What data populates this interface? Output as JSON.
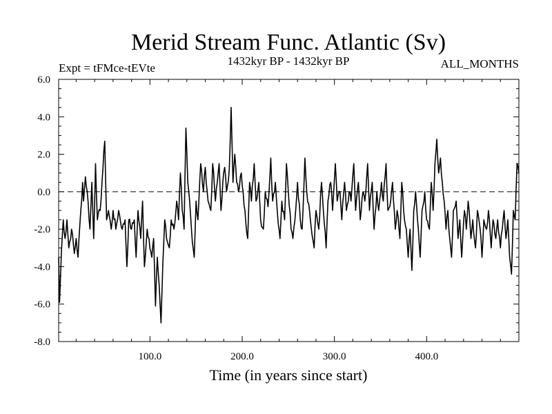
{
  "chart_data": {
    "type": "line",
    "title": "Merid Stream Func. Atlantic (Sv)",
    "subtitle_left": "Expt = tFMce-tEVte",
    "subtitle_center": "1432kyr BP - 1432kyr BP",
    "subtitle_right": "ALL_MONTHS",
    "xlabel": "Time (in years since start)",
    "ylabel": "",
    "xlim": [
      1,
      500
    ],
    "ylim": [
      -8,
      6
    ],
    "x_ticks": [
      100,
      200,
      300,
      400
    ],
    "x_tick_labels": [
      "100.0",
      "200.0",
      "300.0",
      "400.0"
    ],
    "y_ticks": [
      -8,
      -6,
      -4,
      -2,
      0,
      2,
      4,
      6
    ],
    "y_tick_labels": [
      "-8.0",
      "-6.0",
      "-4.0",
      "-2.0",
      "0.0",
      "2.0",
      "4.0",
      "6.0"
    ],
    "reference_line": 0,
    "series": [
      {
        "name": "Merid Stream Func. Atlantic",
        "color": "#000000",
        "anchors": [
          [
            1,
            -3.5
          ],
          [
            2,
            -5.9
          ],
          [
            4,
            -3.2
          ],
          [
            6,
            -1.5
          ],
          [
            8,
            -2.5
          ],
          [
            10,
            -1.5
          ],
          [
            12,
            -3.0
          ],
          [
            15,
            -2.0
          ],
          [
            18,
            -3.3
          ],
          [
            20,
            -2.5
          ],
          [
            22,
            -3.5
          ],
          [
            25,
            -1.0
          ],
          [
            27,
            0.5
          ],
          [
            28,
            -0.5
          ],
          [
            30,
            0.8
          ],
          [
            32,
            0.0
          ],
          [
            35,
            -2.0
          ],
          [
            37,
            0.5
          ],
          [
            39,
            -2.5
          ],
          [
            41,
            1.5
          ],
          [
            43,
            -1.5
          ],
          [
            46,
            -1.0
          ],
          [
            48,
            0.5
          ],
          [
            51,
            2.7
          ],
          [
            53,
            -1.5
          ],
          [
            55,
            -1.0
          ],
          [
            58,
            -2.0
          ],
          [
            60,
            -1.0
          ],
          [
            63,
            -2.0
          ],
          [
            66,
            -1.0
          ],
          [
            70,
            -2.0
          ],
          [
            73,
            -1.5
          ],
          [
            75,
            -4.0
          ],
          [
            77,
            -1.5
          ],
          [
            80,
            -2.0
          ],
          [
            83,
            -1.5
          ],
          [
            85,
            -3.5
          ],
          [
            87,
            -1.0
          ],
          [
            90,
            -2.5
          ],
          [
            92,
            -0.5
          ],
          [
            94,
            -4.0
          ],
          [
            97,
            -2.0
          ],
          [
            99,
            -2.5
          ],
          [
            102,
            -3.5
          ],
          [
            104,
            -2.5
          ],
          [
            106,
            -6.1
          ],
          [
            108,
            -3.5
          ],
          [
            110,
            -5.0
          ],
          [
            112,
            -7.0
          ],
          [
            114,
            -3.8
          ],
          [
            116,
            -1.5
          ],
          [
            118,
            -2.5
          ],
          [
            121,
            -3.0
          ],
          [
            123,
            -1.5
          ],
          [
            126,
            -2.0
          ],
          [
            129,
            -0.5
          ],
          [
            131,
            -1.5
          ],
          [
            133,
            1.0
          ],
          [
            135,
            -1.0
          ],
          [
            137,
            -2.0
          ],
          [
            139,
            3.4
          ],
          [
            141,
            0.5
          ],
          [
            143,
            -0.5
          ],
          [
            145,
            -2.0
          ],
          [
            148,
            -3.5
          ],
          [
            150,
            -0.5
          ],
          [
            152,
            -1.5
          ],
          [
            155,
            1.5
          ],
          [
            158,
            0.0
          ],
          [
            160,
            1.3
          ],
          [
            163,
            -0.5
          ],
          [
            166,
            -1.0
          ],
          [
            168,
            1.5
          ],
          [
            171,
            -0.5
          ],
          [
            173,
            0.5
          ],
          [
            175,
            1.5
          ],
          [
            177,
            -1.0
          ],
          [
            179,
            0.5
          ],
          [
            181,
            1.3
          ],
          [
            183,
            0.0
          ],
          [
            186,
            1.2
          ],
          [
            188,
            4.5
          ],
          [
            190,
            0.5
          ],
          [
            192,
            2.0
          ],
          [
            194,
            0.5
          ],
          [
            196,
            0.0
          ],
          [
            199,
            1.0
          ],
          [
            201,
            0.0
          ],
          [
            203,
            -1.0
          ],
          [
            206,
            -2.5
          ],
          [
            208,
            0.5
          ],
          [
            210,
            -0.5
          ],
          [
            213,
            1.5
          ],
          [
            215,
            -0.5
          ],
          [
            218,
            0.5
          ],
          [
            220,
            -1.5
          ],
          [
            223,
            -2.0
          ],
          [
            225,
            0.0
          ],
          [
            228,
            -0.8
          ],
          [
            231,
            1.8
          ],
          [
            233,
            -0.5
          ],
          [
            236,
            0.5
          ],
          [
            238,
            -1.0
          ],
          [
            241,
            -2.5
          ],
          [
            243,
            -0.5
          ],
          [
            246,
            -1.5
          ],
          [
            248,
            1.5
          ],
          [
            250,
            0.0
          ],
          [
            253,
            -2.0
          ],
          [
            255,
            -2.5
          ],
          [
            258,
            -1.0
          ],
          [
            260,
            0.5
          ],
          [
            263,
            -1.5
          ],
          [
            265,
            -2.0
          ],
          [
            268,
            1.8
          ],
          [
            270,
            0.0
          ],
          [
            273,
            -1.0
          ],
          [
            275,
            -2.0
          ],
          [
            278,
            -3.0
          ],
          [
            280,
            -1.0
          ],
          [
            283,
            -2.0
          ],
          [
            286,
            0.5
          ],
          [
            288,
            -1.0
          ],
          [
            291,
            -3.0
          ],
          [
            293,
            -0.5
          ],
          [
            296,
            0.5
          ],
          [
            298,
            -1.0
          ],
          [
            301,
            1.5
          ],
          [
            303,
            -0.5
          ],
          [
            306,
            0.0
          ],
          [
            308,
            -1.5
          ],
          [
            311,
            0.5
          ],
          [
            313,
            -1.0
          ],
          [
            316,
            0.0
          ],
          [
            318,
            -0.5
          ],
          [
            321,
            1.5
          ],
          [
            323,
            -1.0
          ],
          [
            326,
            0.5
          ],
          [
            328,
            -1.5
          ],
          [
            331,
            0.0
          ],
          [
            333,
            -0.5
          ],
          [
            336,
            1.5
          ],
          [
            338,
            -1.0
          ],
          [
            341,
            0.5
          ],
          [
            343,
            -2.0
          ],
          [
            346,
            0.0
          ],
          [
            348,
            -1.0
          ],
          [
            351,
            0.5
          ],
          [
            353,
            -0.5
          ],
          [
            356,
            1.5
          ],
          [
            358,
            -1.0
          ],
          [
            361,
            -0.5
          ],
          [
            363,
            0.5
          ],
          [
            366,
            -2.0
          ],
          [
            368,
            -1.0
          ],
          [
            371,
            -2.5
          ],
          [
            373,
            0.5
          ],
          [
            376,
            -1.5
          ],
          [
            378,
            -2.0
          ],
          [
            380,
            -3.5
          ],
          [
            382,
            -2.0
          ],
          [
            384,
            -4.2
          ],
          [
            386,
            -1.0
          ],
          [
            388,
            0.0
          ],
          [
            391,
            -2.0
          ],
          [
            393,
            -3.5
          ],
          [
            395,
            -1.0
          ],
          [
            398,
            0.0
          ],
          [
            400,
            -1.5
          ],
          [
            403,
            -2.0
          ],
          [
            405,
            0.5
          ],
          [
            407,
            -1.0
          ],
          [
            409,
            1.5
          ],
          [
            411,
            2.8
          ],
          [
            413,
            1.0
          ],
          [
            415,
            1.8
          ],
          [
            417,
            0.5
          ],
          [
            419,
            -0.5
          ],
          [
            421,
            -2.0
          ],
          [
            423,
            -1.0
          ],
          [
            425,
            -2.5
          ],
          [
            427,
            -3.5
          ],
          [
            429,
            -1.0
          ],
          [
            432,
            -0.5
          ],
          [
            434,
            -2.5
          ],
          [
            436,
            -1.5
          ],
          [
            438,
            -3.5
          ],
          [
            441,
            -1.0
          ],
          [
            443,
            -2.0
          ],
          [
            445,
            -0.5
          ],
          [
            448,
            -2.5
          ],
          [
            450,
            -1.5
          ],
          [
            453,
            -3.0
          ],
          [
            455,
            -1.0
          ],
          [
            458,
            -2.0
          ],
          [
            460,
            -3.5
          ],
          [
            462,
            -1.5
          ],
          [
            465,
            -2.0
          ],
          [
            467,
            -1.0
          ],
          [
            470,
            -3.0
          ],
          [
            472,
            -1.5
          ],
          [
            475,
            -2.5
          ],
          [
            477,
            -1.5
          ],
          [
            480,
            -3.0
          ],
          [
            482,
            -2.0
          ],
          [
            484,
            -1.0
          ],
          [
            486,
            -2.5
          ],
          [
            488,
            -1.5
          ],
          [
            490,
            -3.5
          ],
          [
            492,
            -4.4
          ],
          [
            494,
            -1.0
          ],
          [
            496,
            -1.5
          ],
          [
            498,
            1.5
          ],
          [
            500,
            1.0
          ]
        ]
      }
    ]
  }
}
